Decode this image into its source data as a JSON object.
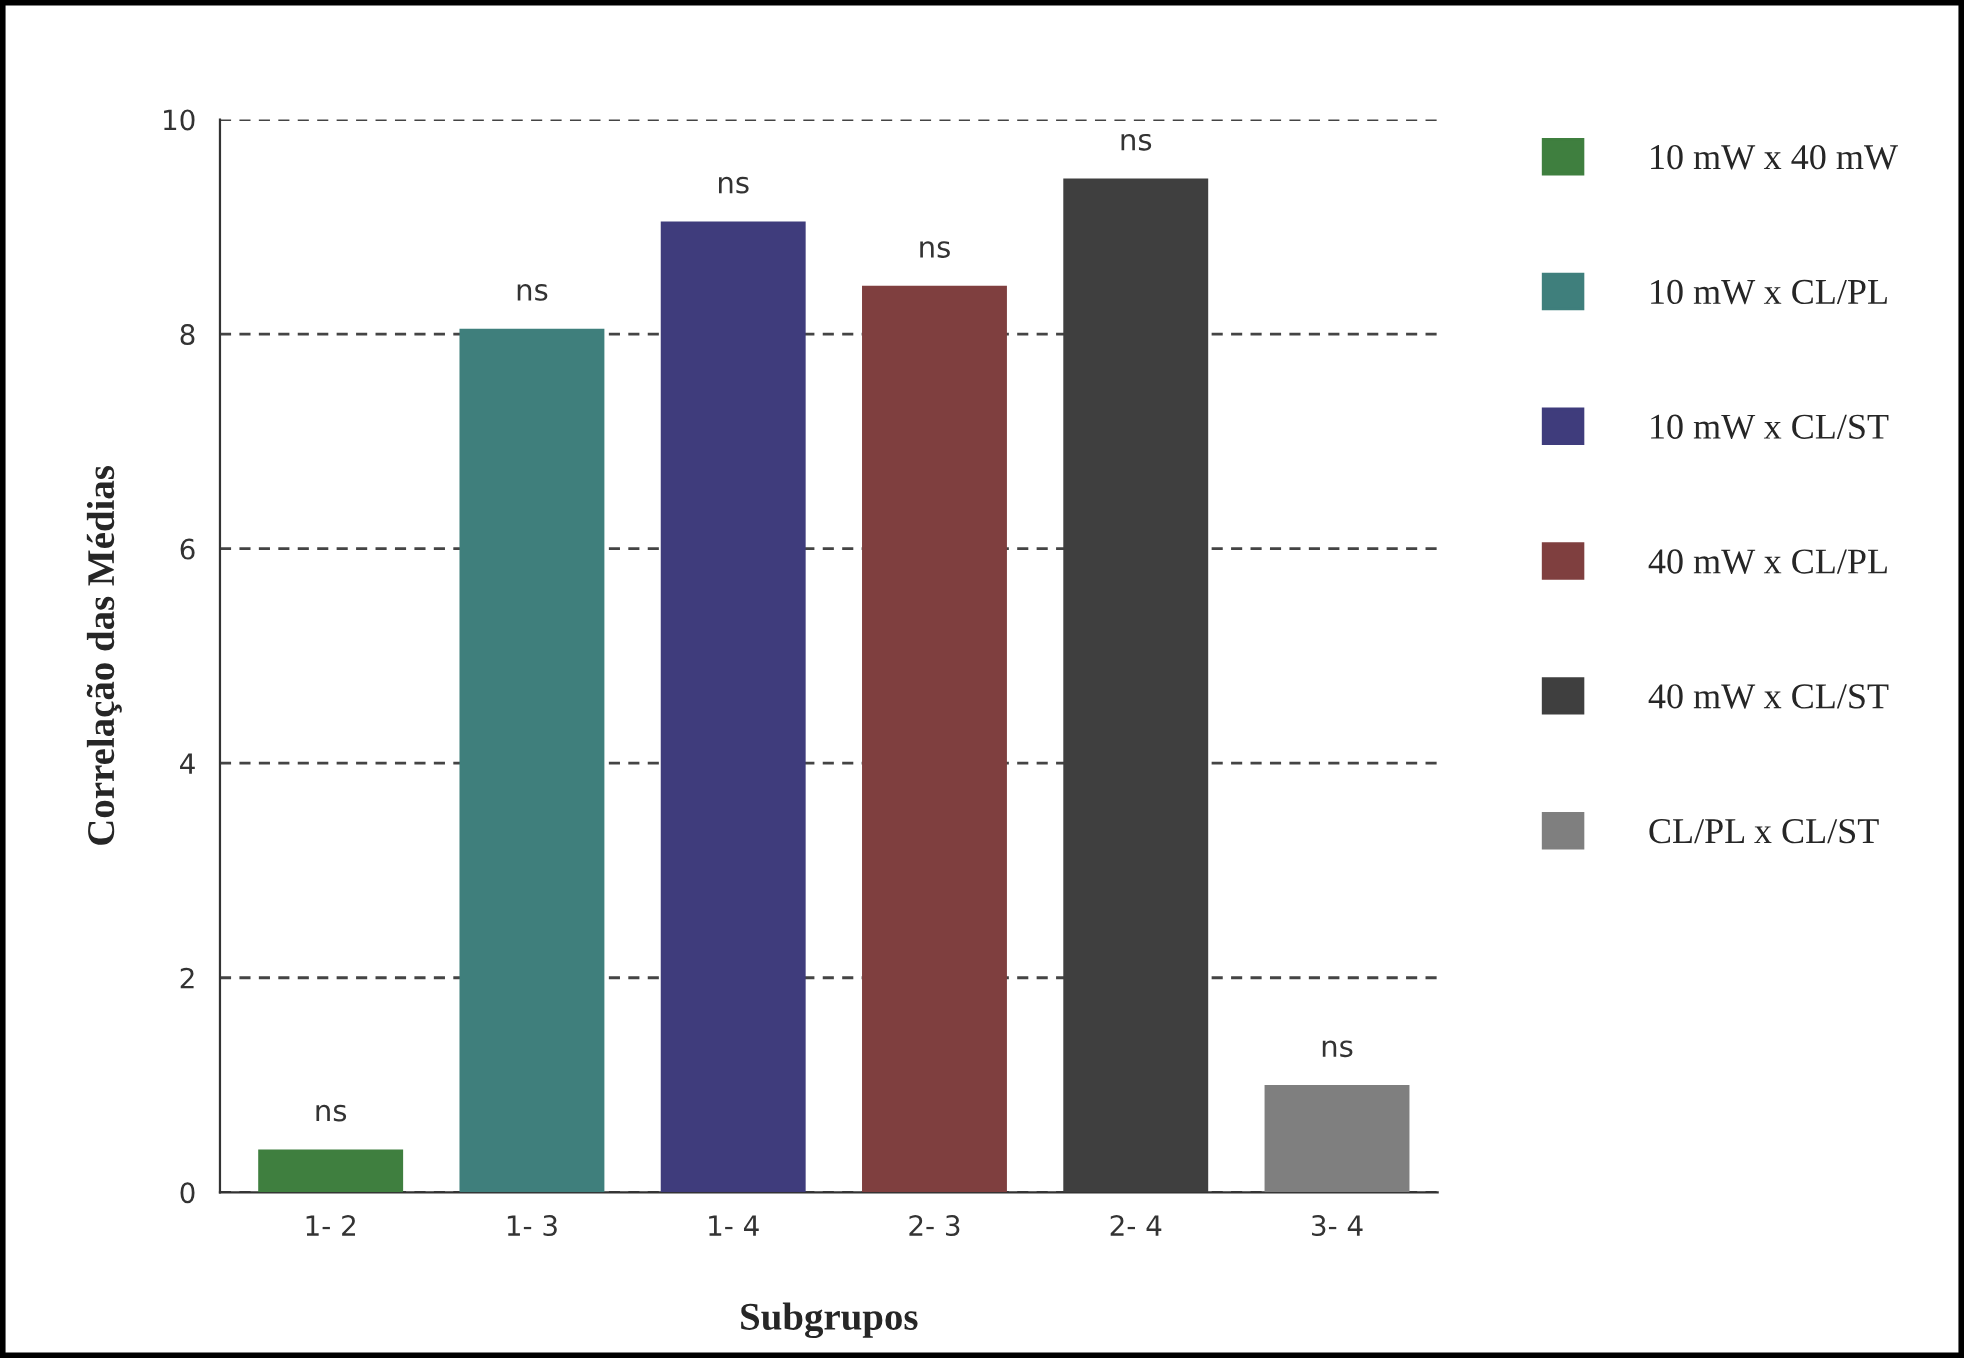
{
  "chart_data": {
    "type": "bar",
    "xlabel": "Subgrupos",
    "ylabel": "Correlação das Médias",
    "categories": [
      "1- 2",
      "1- 3",
      "1- 4",
      "2- 3",
      "2- 4",
      "3- 4"
    ],
    "series": [
      {
        "name": "10 mW x 40 mW",
        "color": "#3f7f3f",
        "values": [
          0.4,
          null,
          null,
          null,
          null,
          null
        ],
        "value_labels": [
          "ns",
          null,
          null,
          null,
          null,
          null
        ]
      },
      {
        "name": "10 mW x CL/PL",
        "color": "#3f7f7c",
        "values": [
          null,
          8.05,
          null,
          null,
          null,
          null
        ],
        "value_labels": [
          null,
          "ns",
          null,
          null,
          null,
          null
        ]
      },
      {
        "name": "10 mW x CL/ST",
        "color": "#3f3c7c",
        "values": [
          null,
          null,
          9.05,
          null,
          null,
          null
        ],
        "value_labels": [
          null,
          null,
          "ns",
          null,
          null,
          null
        ]
      },
      {
        "name": "40 mW x CL/PL",
        "color": "#7f3f3f",
        "values": [
          null,
          null,
          null,
          8.45,
          null,
          null
        ],
        "value_labels": [
          null,
          null,
          null,
          "ns",
          null,
          null
        ]
      },
      {
        "name": "40 mW x CL/ST",
        "color": "#3f3f3f",
        "values": [
          null,
          null,
          null,
          null,
          9.45,
          null
        ],
        "value_labels": [
          null,
          null,
          null,
          null,
          "ns",
          null
        ]
      },
      {
        "name": "CL/PL x CL/ST",
        "color": "#7f7f7f",
        "values": [
          null,
          null,
          null,
          null,
          null,
          1.0
        ],
        "value_labels": [
          null,
          null,
          null,
          null,
          null,
          "ns"
        ]
      }
    ],
    "ylim": [
      0,
      10
    ],
    "yticks": [
      0,
      2,
      4,
      6,
      8,
      10
    ],
    "grid": "y",
    "legend": "right"
  }
}
